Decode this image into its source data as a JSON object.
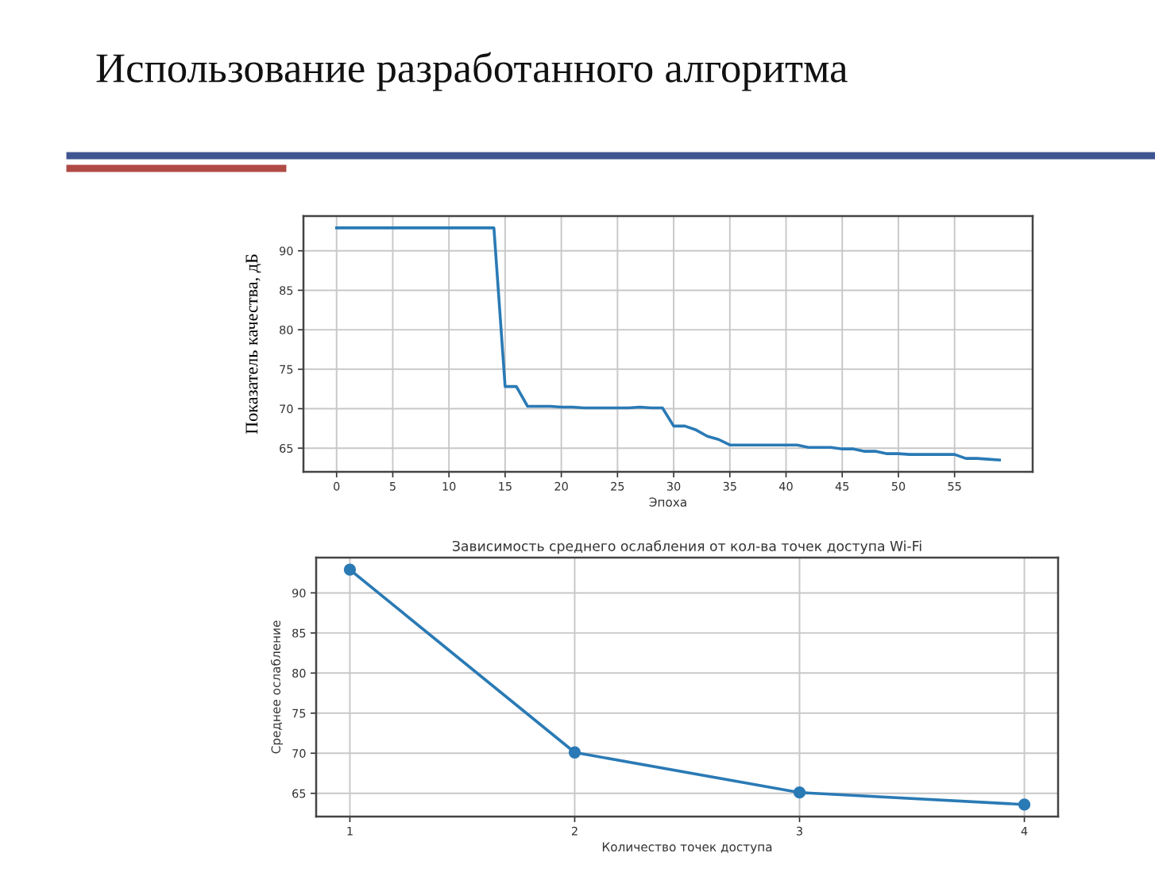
{
  "chart_data": [
    {
      "type": "line",
      "title": "Использование разработанного алгоритма",
      "xlabel": "Эпоха",
      "ylabel": "Показатель качества, дБ",
      "x": [
        0,
        1,
        2,
        3,
        4,
        5,
        6,
        7,
        8,
        9,
        10,
        11,
        12,
        13,
        14,
        15,
        16,
        17,
        18,
        19,
        20,
        21,
        22,
        23,
        24,
        25,
        26,
        27,
        28,
        29,
        30,
        31,
        32,
        33,
        34,
        35,
        36,
        37,
        38,
        39,
        40,
        41,
        42,
        43,
        44,
        45,
        46,
        47,
        48,
        49,
        50,
        51,
        52,
        53,
        54,
        55,
        56,
        57,
        58,
        59
      ],
      "series": [
        {
          "color": "#2a7ab5",
          "values": [
            92.9,
            92.9,
            92.9,
            92.9,
            92.9,
            92.9,
            92.9,
            92.9,
            92.9,
            92.9,
            92.9,
            92.9,
            92.9,
            92.9,
            92.9,
            72.8,
            72.8,
            70.3,
            70.3,
            70.3,
            70.2,
            70.2,
            70.1,
            70.1,
            70.1,
            70.1,
            70.1,
            70.2,
            70.1,
            70.1,
            67.8,
            67.8,
            67.3,
            66.5,
            66.1,
            65.4,
            65.4,
            65.4,
            65.4,
            65.4,
            65.4,
            65.4,
            65.1,
            65.1,
            65.1,
            64.9,
            64.9,
            64.6,
            64.6,
            64.3,
            64.3,
            64.2,
            64.2,
            64.2,
            64.2,
            64.2,
            63.7,
            63.7,
            63.6,
            63.5
          ]
        }
      ],
      "xlim": [
        -2.95,
        61.95
      ],
      "ylim": [
        62.0,
        94.4
      ],
      "xticks": [
        0,
        5,
        10,
        15,
        20,
        25,
        30,
        35,
        40,
        45,
        50,
        55
      ],
      "yticks": [
        65,
        70,
        75,
        80,
        85,
        90
      ],
      "grid": true,
      "line_style": "solid"
    },
    {
      "type": "line",
      "title": "Зависимость среднего ослабления от кол-ва точек доступа Wi-Fi",
      "xlabel": "Количество точек доступа",
      "ylabel": "Среднее ослабление",
      "x": [
        1,
        2,
        3,
        4
      ],
      "series": [
        {
          "color": "#2a7ab5",
          "values": [
            92.9,
            70.1,
            65.1,
            63.6
          ]
        }
      ],
      "xlim": [
        0.85,
        4.15
      ],
      "ylim": [
        62.1,
        94.4
      ],
      "xticks": [
        1,
        2,
        3,
        4
      ],
      "yticks": [
        65,
        70,
        75,
        80,
        85,
        90
      ],
      "grid": true,
      "marker": "circle",
      "line_style": "solid"
    }
  ]
}
